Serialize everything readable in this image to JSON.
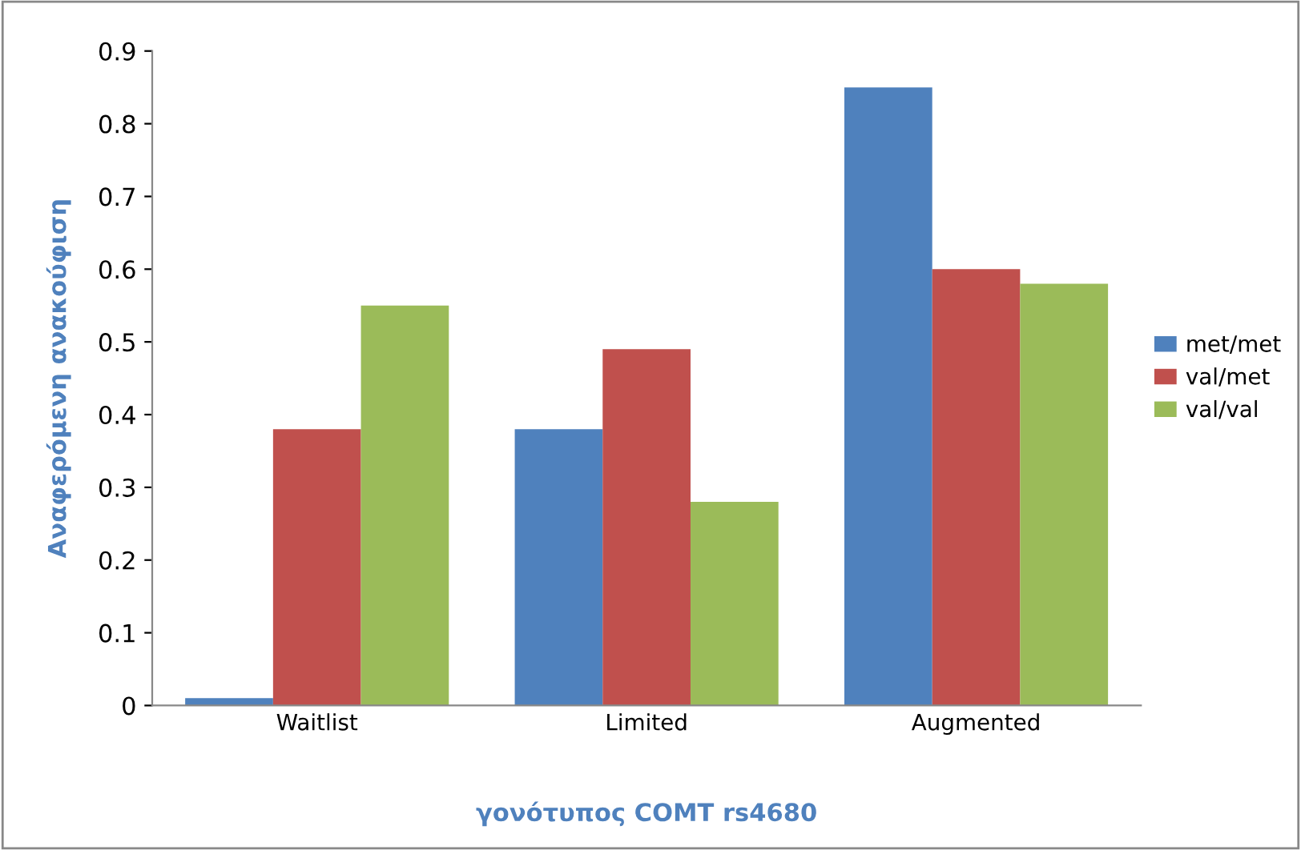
{
  "chart_data": {
    "type": "bar",
    "xlabel": "γονότυπος COMT rs4680",
    "ylabel": "Αναφερόμενη ανακούφιση",
    "categories": [
      "Waitlist",
      "Limited",
      "Augmented"
    ],
    "series": [
      {
        "name": "met/met",
        "color": "#4f81bd",
        "values": [
          0.01,
          0.38,
          0.85
        ]
      },
      {
        "name": "val/met",
        "color": "#c0504d",
        "values": [
          0.38,
          0.49,
          0.6
        ]
      },
      {
        "name": "val/val",
        "color": "#9bbb59",
        "values": [
          0.55,
          0.28,
          0.58
        ]
      }
    ],
    "ylim": [
      0,
      0.9
    ],
    "yticks": [
      0,
      0.1,
      0.2,
      0.3,
      0.4,
      0.5,
      0.6,
      0.7,
      0.8,
      0.9
    ],
    "grid": false,
    "legend": "right"
  }
}
